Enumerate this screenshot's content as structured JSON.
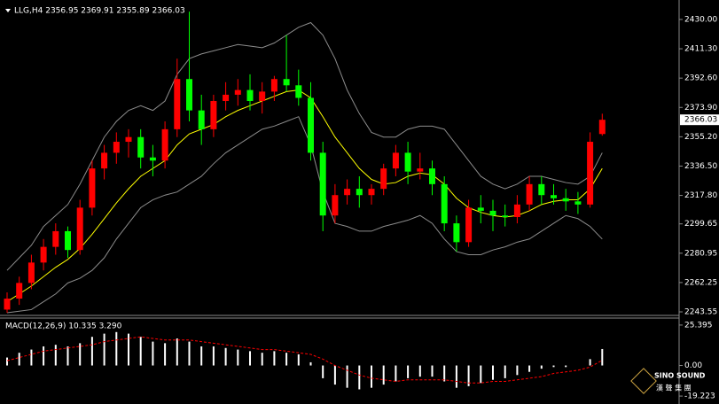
{
  "chart_data": [
    {
      "type": "candlestick",
      "title": "LLG,H4  2356.95 2369.91 2355.89 2366.03",
      "up_color": "#ff0000",
      "down_color": "#00ff00",
      "open": [
        2245,
        2252,
        2262,
        2275,
        2285,
        2295,
        2283,
        2310,
        2335,
        2345,
        2352,
        2355,
        2342,
        2340,
        2360,
        2392,
        2372,
        2360,
        2378,
        2382,
        2385,
        2378,
        2384,
        2392,
        2388,
        2380,
        2345,
        2305,
        2318,
        2322,
        2318,
        2322,
        2335,
        2345,
        2333,
        2335,
        2325,
        2300,
        2288,
        2310,
        2308,
        2305,
        2304,
        2312,
        2325,
        2318,
        2316,
        2314,
        2312,
        2356.95
      ],
      "high": [
        2256,
        2266,
        2280,
        2290,
        2300,
        2298,
        2315,
        2340,
        2350,
        2358,
        2360,
        2360,
        2350,
        2365,
        2405,
        2435,
        2382,
        2382,
        2390,
        2392,
        2395,
        2390,
        2394,
        2420,
        2398,
        2390,
        2352,
        2325,
        2328,
        2330,
        2325,
        2338,
        2350,
        2352,
        2345,
        2340,
        2330,
        2305,
        2315,
        2318,
        2315,
        2312,
        2318,
        2330,
        2330,
        2325,
        2322,
        2320,
        2358,
        2369.91
      ],
      "low": [
        2243,
        2248,
        2258,
        2270,
        2280,
        2278,
        2280,
        2305,
        2328,
        2338,
        2342,
        2335,
        2330,
        2335,
        2355,
        2365,
        2350,
        2355,
        2372,
        2375,
        2372,
        2370,
        2378,
        2384,
        2375,
        2340,
        2295,
        2300,
        2312,
        2310,
        2312,
        2318,
        2330,
        2325,
        2328,
        2318,
        2295,
        2282,
        2285,
        2300,
        2295,
        2298,
        2300,
        2308,
        2312,
        2312,
        2308,
        2306,
        2310,
        2355.89
      ],
      "close": [
        2252,
        2262,
        2275,
        2285,
        2295,
        2283,
        2310,
        2335,
        2345,
        2352,
        2355,
        2342,
        2340,
        2360,
        2392,
        2372,
        2360,
        2378,
        2382,
        2385,
        2378,
        2384,
        2392,
        2388,
        2380,
        2345,
        2305,
        2318,
        2322,
        2318,
        2322,
        2335,
        2345,
        2333,
        2335,
        2325,
        2300,
        2288,
        2310,
        2308,
        2305,
        2304,
        2312,
        2325,
        2318,
        2316,
        2314,
        2312,
        2352,
        2366.03
      ],
      "series": [
        {
          "color": "#ffff00",
          "values": [
            2250,
            2255,
            2260,
            2266,
            2272,
            2277,
            2284,
            2293,
            2303,
            2313,
            2322,
            2330,
            2335,
            2340,
            2350,
            2357,
            2360,
            2363,
            2368,
            2372,
            2375,
            2378,
            2381,
            2384,
            2385,
            2380,
            2368,
            2355,
            2345,
            2335,
            2328,
            2325,
            2326,
            2330,
            2332,
            2331,
            2325,
            2316,
            2310,
            2307,
            2305,
            2304,
            2305,
            2308,
            2312,
            2314,
            2315,
            2315,
            2322,
            2335
          ]
        },
        {
          "color": "#8c8c8c",
          "values": [
            2270,
            2278,
            2286,
            2298,
            2305,
            2312,
            2325,
            2340,
            2355,
            2365,
            2372,
            2375,
            2372,
            2378,
            2395,
            2405,
            2408,
            2410,
            2412,
            2414,
            2413,
            2412,
            2415,
            2420,
            2425,
            2428,
            2420,
            2405,
            2385,
            2370,
            2358,
            2355,
            2355,
            2360,
            2362,
            2362,
            2360,
            2350,
            2340,
            2330,
            2325,
            2322,
            2325,
            2330,
            2330,
            2328,
            2326,
            2325,
            2330,
            2345
          ]
        },
        {
          "color": "#8c8c8c",
          "values": [
            2243,
            2244,
            2245,
            2250,
            2255,
            2262,
            2265,
            2270,
            2278,
            2290,
            2300,
            2310,
            2315,
            2318,
            2320,
            2325,
            2330,
            2338,
            2345,
            2350,
            2355,
            2360,
            2362,
            2365,
            2368,
            2350,
            2320,
            2300,
            2298,
            2295,
            2295,
            2298,
            2300,
            2302,
            2305,
            2300,
            2290,
            2282,
            2280,
            2280,
            2283,
            2285,
            2288,
            2290,
            2295,
            2300,
            2305,
            2303,
            2298,
            2290
          ]
        }
      ],
      "ylim": [
        2241.3,
        2442.4
      ],
      "yticks": [
        {
          "value": 2430,
          "label": "2430.00"
        },
        {
          "value": 2411.3,
          "label": "2411.30"
        },
        {
          "value": 2392.6,
          "label": "2392.60"
        },
        {
          "value": 2373.9,
          "label": "2373.90"
        },
        {
          "value": 2355.2,
          "label": "2355.20"
        },
        {
          "value": 2336.5,
          "label": "2336.50"
        },
        {
          "value": 2317.8,
          "label": "2317.80"
        },
        {
          "value": 2299.65,
          "label": "2299.65"
        },
        {
          "value": 2280.95,
          "label": "2280.95"
        },
        {
          "value": 2262.25,
          "label": "2262.25"
        },
        {
          "value": 2243.55,
          "label": "2243.55"
        }
      ],
      "price_marker": {
        "value": 2366.03,
        "label": "2366.03"
      }
    },
    {
      "type": "macd",
      "title": "MACD(12,26,9) 10.335 3.290",
      "color": "#ffffff",
      "signal_color": "#ff0000",
      "values": [
        5,
        8,
        10,
        12,
        13,
        12,
        14,
        18,
        20,
        21,
        20,
        18,
        15,
        14,
        17,
        15,
        12,
        12,
        11,
        10,
        9,
        8,
        9,
        8,
        7,
        2,
        -8,
        -12,
        -14,
        -15,
        -14,
        -12,
        -10,
        -8,
        -7,
        -7,
        -10,
        -14,
        -13,
        -11,
        -9,
        -8,
        -6,
        -4,
        -2,
        -1,
        -1,
        0,
        4,
        10.335
      ],
      "signal": [
        3,
        5,
        7,
        9,
        10,
        11,
        12,
        13,
        15,
        16,
        17,
        18,
        17,
        16,
        16,
        16,
        15,
        14,
        13,
        12,
        11,
        10,
        10,
        9,
        8,
        7,
        4,
        0,
        -3,
        -6,
        -8,
        -9,
        -10,
        -9,
        -9,
        -9,
        -9,
        -10,
        -11,
        -11,
        -10,
        -10,
        -9,
        -8,
        -7,
        -5,
        -4,
        -3,
        -1,
        3.29
      ],
      "ylim": [
        -24.2,
        29.8
      ],
      "yticks": [
        {
          "value": 25.395,
          "label": "25.395"
        },
        {
          "value": 0,
          "label": "0.00"
        },
        {
          "value": -19.223,
          "label": "-19.223"
        }
      ]
    }
  ],
  "logo": {
    "name": "SINO SOUND",
    "subtitle": "漢 聲 集 團"
  }
}
